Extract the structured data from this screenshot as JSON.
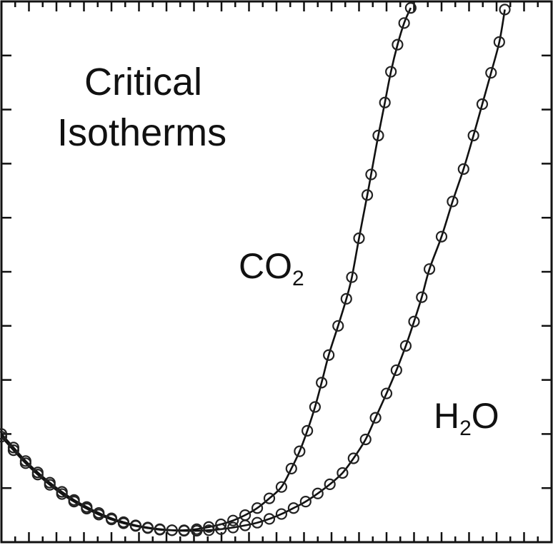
{
  "chart_data": {
    "type": "scatter",
    "title": "Critical Isotherms",
    "title_lines": [
      "Critical",
      "Isotherms"
    ],
    "xlabel": "",
    "ylabel": "",
    "xlim": [
      0,
      1
    ],
    "ylim": [
      0,
      1
    ],
    "tick_labels_shown": false,
    "grid": false,
    "legend": "inline labels",
    "series": [
      {
        "name": "CO2",
        "label_main": "CO",
        "label_sub": "2",
        "fit": "solid line",
        "marker": "open circle",
        "points": [
          [
            0.0,
            0.195
          ],
          [
            0.022,
            0.17
          ],
          [
            0.044,
            0.146
          ],
          [
            0.066,
            0.125
          ],
          [
            0.088,
            0.106
          ],
          [
            0.11,
            0.089
          ],
          [
            0.132,
            0.075
          ],
          [
            0.155,
            0.062
          ],
          [
            0.177,
            0.051
          ],
          [
            0.2,
            0.042
          ],
          [
            0.222,
            0.035
          ],
          [
            0.244,
            0.03
          ],
          [
            0.266,
            0.026
          ],
          [
            0.288,
            0.023
          ],
          [
            0.31,
            0.022
          ],
          [
            0.332,
            0.022
          ],
          [
            0.355,
            0.024
          ],
          [
            0.377,
            0.028
          ],
          [
            0.399,
            0.033
          ],
          [
            0.421,
            0.04
          ],
          [
            0.443,
            0.05
          ],
          [
            0.465,
            0.063
          ],
          [
            0.487,
            0.081
          ],
          [
            0.509,
            0.102
          ],
          [
            0.527,
            0.136
          ],
          [
            0.542,
            0.168
          ],
          [
            0.556,
            0.206
          ],
          [
            0.57,
            0.25
          ],
          [
            0.582,
            0.295
          ],
          [
            0.595,
            0.346
          ],
          [
            0.612,
            0.4
          ],
          [
            0.627,
            0.45
          ],
          [
            0.637,
            0.49
          ],
          [
            0.65,
            0.562
          ],
          [
            0.665,
            0.642
          ],
          [
            0.672,
            0.68
          ],
          [
            0.685,
            0.752
          ],
          [
            0.697,
            0.813
          ],
          [
            0.708,
            0.87
          ],
          [
            0.72,
            0.92
          ],
          [
            0.732,
            0.96
          ],
          [
            0.744,
            0.988
          ]
        ]
      },
      {
        "name": "H2O",
        "label_main": "H",
        "label_sub": "2",
        "label_tail": "O",
        "fit": "solid line",
        "marker": "open circle",
        "points": [
          [
            0.0,
            0.2
          ],
          [
            0.022,
            0.175
          ],
          [
            0.044,
            0.15
          ],
          [
            0.066,
            0.129
          ],
          [
            0.088,
            0.11
          ],
          [
            0.11,
            0.093
          ],
          [
            0.132,
            0.078
          ],
          [
            0.155,
            0.065
          ],
          [
            0.177,
            0.054
          ],
          [
            0.2,
            0.044
          ],
          [
            0.222,
            0.037
          ],
          [
            0.244,
            0.031
          ],
          [
            0.266,
            0.027
          ],
          [
            0.288,
            0.024
          ],
          [
            0.31,
            0.022
          ],
          [
            0.332,
            0.021
          ],
          [
            0.355,
            0.021
          ],
          [
            0.377,
            0.022
          ],
          [
            0.399,
            0.024
          ],
          [
            0.421,
            0.027
          ],
          [
            0.443,
            0.031
          ],
          [
            0.465,
            0.036
          ],
          [
            0.487,
            0.043
          ],
          [
            0.509,
            0.052
          ],
          [
            0.531,
            0.063
          ],
          [
            0.553,
            0.075
          ],
          [
            0.575,
            0.09
          ],
          [
            0.597,
            0.107
          ],
          [
            0.62,
            0.128
          ],
          [
            0.64,
            0.155
          ],
          [
            0.662,
            0.19
          ],
          [
            0.68,
            0.23
          ],
          [
            0.7,
            0.275
          ],
          [
            0.718,
            0.318
          ],
          [
            0.735,
            0.363
          ],
          [
            0.75,
            0.408
          ],
          [
            0.764,
            0.453
          ],
          [
            0.778,
            0.505
          ],
          [
            0.8,
            0.565
          ],
          [
            0.82,
            0.63
          ],
          [
            0.84,
            0.69
          ],
          [
            0.858,
            0.752
          ],
          [
            0.874,
            0.81
          ],
          [
            0.89,
            0.868
          ],
          [
            0.905,
            0.925
          ],
          [
            0.915,
            0.985
          ]
        ]
      }
    ]
  }
}
